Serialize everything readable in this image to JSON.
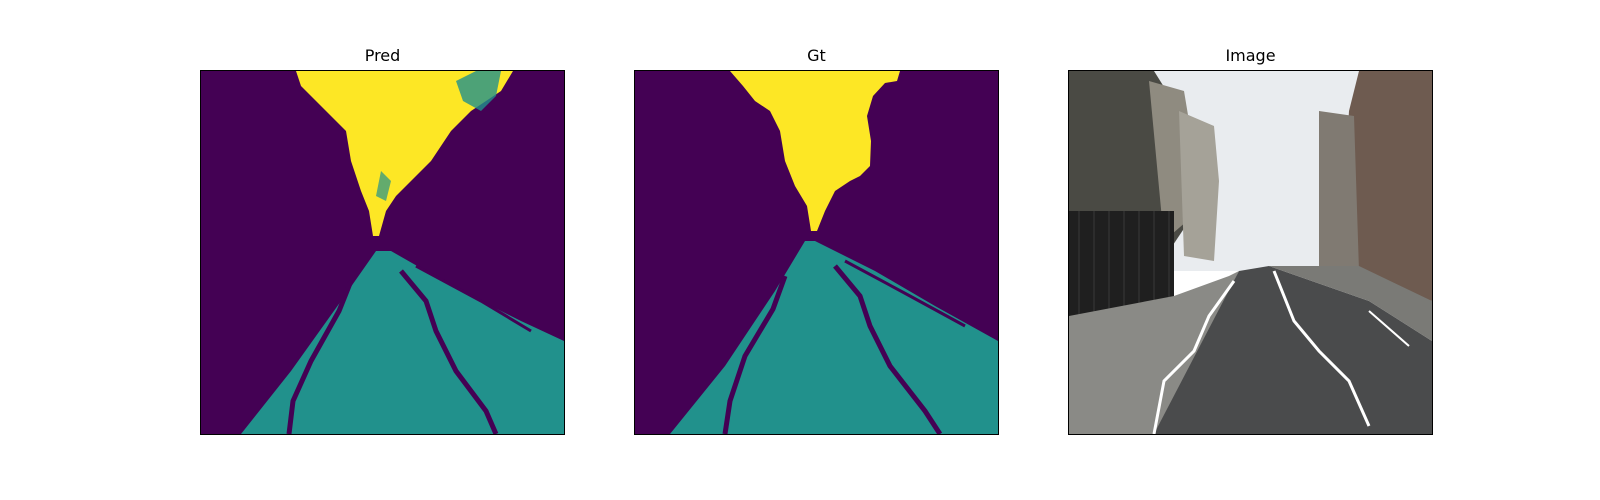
{
  "panels": [
    {
      "title": "Pred"
    },
    {
      "title": "Gt"
    },
    {
      "title": "Image"
    }
  ],
  "colors": {
    "background": "#440154",
    "road": "#21918c",
    "sky": "#fde725"
  }
}
